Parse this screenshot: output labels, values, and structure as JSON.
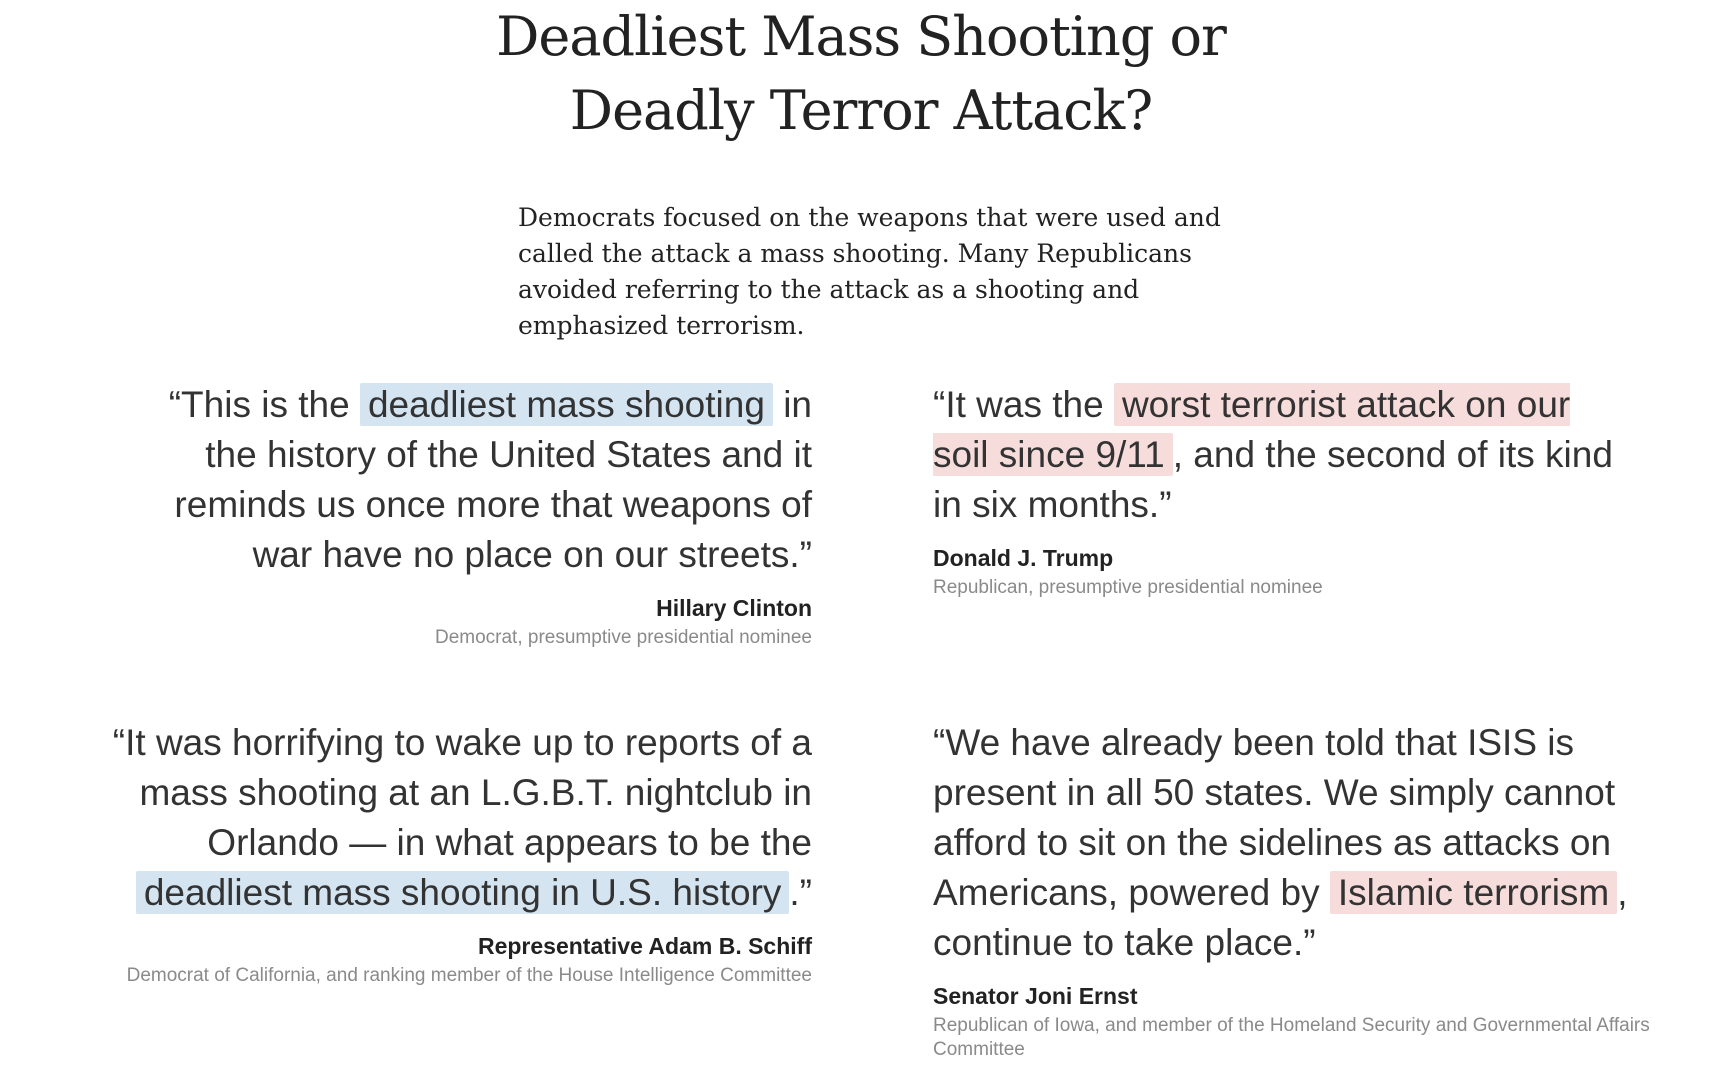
{
  "headline": {
    "line1": "Deadliest Mass Shooting or",
    "line2": "Deadly Terror Attack?"
  },
  "dek": "Democrats focused on the weapons that were used and called the attack a mass shooting. Many Republicans avoided referring to the attack as a shooting and emphasized terrorism.",
  "quotes": [
    {
      "before": "“This is the ",
      "highlight": "deadliest mass shooting",
      "after": " in the history of the United States and it reminds us once more that weapons of war have no place on our streets.”",
      "speaker": "Hillary Clinton",
      "role": "Democrat, presumptive presidential nominee",
      "highlight_color": "#d4e4f1"
    },
    {
      "before": "“It was the ",
      "highlight": "worst terrorist attack on our soil since 9/11",
      "after": ", and the second of its kind in six months.”",
      "speaker": "Donald J. Trump",
      "role": "Republican, presumptive presidential nominee",
      "highlight_color": "#f7dcdc"
    },
    {
      "before": "“It was horrifying to wake up to reports of a mass shooting at an L.G.B.T. nightclub in Orlando — in what appears to be the ",
      "highlight": "deadliest mass shooting in U.S. history",
      "after": ".”",
      "speaker": "Representative Adam B. Schiff",
      "role": "Democrat of California, and ranking member of the House Intelligence Committee",
      "highlight_color": "#d4e4f1"
    },
    {
      "before": "“We have already been told that ISIS is present in all 50 states. We simply cannot afford to sit on the sidelines as attacks on Americans, powered by ",
      "highlight": "Islamic terrorism",
      "after": ", continue to take place.”",
      "speaker": "Senator Joni Ernst",
      "role": "Republican of Iowa, and member of the Homeland Security and Governmental Affairs Committee",
      "highlight_color": "#f7dcdc"
    }
  ]
}
